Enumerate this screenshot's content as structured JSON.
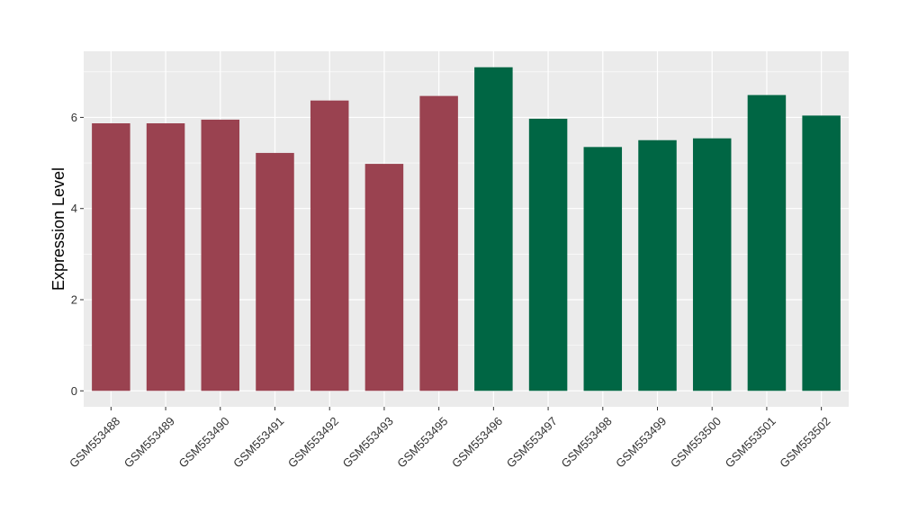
{
  "chart_data": {
    "type": "bar",
    "title": "",
    "xlabel": "",
    "ylabel": "Expression Level",
    "ylim": [
      -0.35,
      7.45
    ],
    "yticks": [
      0,
      2,
      4,
      6
    ],
    "grid": true,
    "legend": "none",
    "categories": [
      "GSM553488",
      "GSM553489",
      "GSM553490",
      "GSM553491",
      "GSM553492",
      "GSM553493",
      "GSM553495",
      "GSM553496",
      "GSM553497",
      "GSM553498",
      "GSM553499",
      "GSM553500",
      "GSM553501",
      "GSM553502"
    ],
    "values": [
      5.87,
      5.87,
      5.95,
      5.22,
      6.37,
      4.98,
      6.47,
      7.1,
      5.97,
      5.35,
      5.5,
      5.54,
      6.49,
      6.04
    ],
    "bar_colors": [
      "#9a4250",
      "#9a4250",
      "#9a4250",
      "#9a4250",
      "#9a4250",
      "#9a4250",
      "#9a4250",
      "#006644",
      "#006644",
      "#006644",
      "#006644",
      "#006644",
      "#006644",
      "#006644"
    ],
    "panel_background": "#ebebeb",
    "grid_color": "#ffffff"
  }
}
